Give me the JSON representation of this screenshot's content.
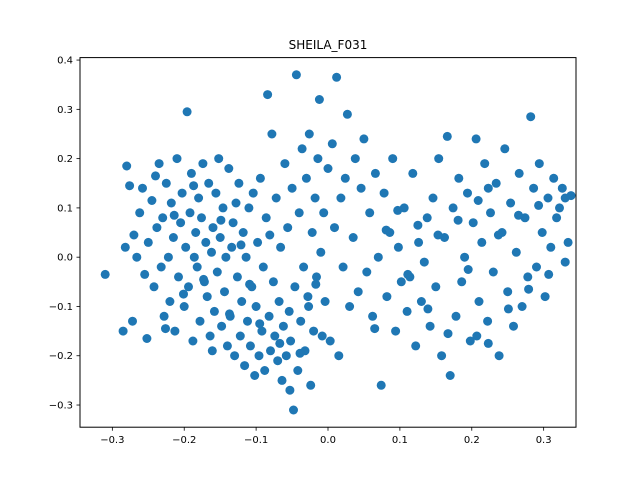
{
  "chart_data": {
    "type": "scatter",
    "title": "SHEILA_F031",
    "xlabel": "",
    "ylabel": "",
    "xlim": [
      -0.345,
      0.345
    ],
    "ylim": [
      -0.345,
      0.405
    ],
    "xticks": [
      -0.3,
      -0.2,
      -0.1,
      0.0,
      0.1,
      0.2,
      0.3
    ],
    "xtick_labels": [
      "−0.3",
      "−0.2",
      "−0.1",
      "0.0",
      "0.1",
      "0.2",
      "0.3"
    ],
    "yticks": [
      -0.3,
      -0.2,
      -0.1,
      0.0,
      0.1,
      0.2,
      0.3,
      0.4
    ],
    "ytick_labels": [
      "−0.3",
      "−0.2",
      "−0.1",
      "0.0",
      "0.1",
      "0.2",
      "0.3",
      "0.4"
    ],
    "grid": false,
    "marker_color": "#1f77b4",
    "points": [
      [
        -0.31,
        -0.035
      ],
      [
        -0.285,
        -0.15
      ],
      [
        -0.28,
        0.185
      ],
      [
        -0.282,
        0.02
      ],
      [
        -0.276,
        0.145
      ],
      [
        -0.266,
        0.0
      ],
      [
        -0.272,
        -0.13
      ],
      [
        -0.262,
        0.09
      ],
      [
        -0.258,
        0.14
      ],
      [
        -0.252,
        -0.165
      ],
      [
        -0.25,
        0.03
      ],
      [
        -0.245,
        0.115
      ],
      [
        -0.242,
        -0.06
      ],
      [
        -0.238,
        0.06
      ],
      [
        -0.235,
        0.19
      ],
      [
        -0.232,
        -0.02
      ],
      [
        -0.23,
        0.08
      ],
      [
        -0.228,
        -0.12
      ],
      [
        -0.225,
        0.15
      ],
      [
        -0.222,
        0.0
      ],
      [
        -0.22,
        -0.09
      ],
      [
        -0.218,
        0.11
      ],
      [
        -0.215,
        0.04
      ],
      [
        -0.213,
        -0.15
      ],
      [
        -0.21,
        0.2
      ],
      [
        -0.208,
        -0.04
      ],
      [
        -0.205,
        0.07
      ],
      [
        -0.203,
        0.13
      ],
      [
        -0.2,
        -0.1
      ],
      [
        -0.198,
        0.02
      ],
      [
        -0.196,
        0.295
      ],
      [
        -0.194,
        -0.06
      ],
      [
        -0.192,
        0.09
      ],
      [
        -0.19,
        0.17
      ],
      [
        -0.188,
        -0.17
      ],
      [
        -0.186,
        0.0
      ],
      [
        -0.184,
        0.05
      ],
      [
        -0.182,
        -0.02
      ],
      [
        -0.18,
        0.12
      ],
      [
        -0.178,
        -0.13
      ],
      [
        -0.176,
        0.08
      ],
      [
        -0.174,
        0.19
      ],
      [
        -0.172,
        -0.05
      ],
      [
        -0.17,
        0.03
      ],
      [
        -0.168,
        -0.08
      ],
      [
        -0.166,
        0.15
      ],
      [
        -0.164,
        -0.16
      ],
      [
        -0.162,
        0.01
      ],
      [
        -0.16,
        0.06
      ],
      [
        -0.158,
        -0.11
      ],
      [
        -0.156,
        0.13
      ],
      [
        -0.154,
        -0.03
      ],
      [
        -0.152,
        0.2
      ],
      [
        -0.15,
        0.04
      ],
      [
        -0.148,
        -0.14
      ],
      [
        -0.146,
        0.1
      ],
      [
        -0.144,
        -0.07
      ],
      [
        -0.142,
        0.0
      ],
      [
        -0.14,
        -0.18
      ],
      [
        -0.138,
        0.18
      ],
      [
        -0.136,
        -0.12
      ],
      [
        -0.134,
        0.02
      ],
      [
        -0.132,
        0.07
      ],
      [
        -0.13,
        -0.2
      ],
      [
        -0.128,
        0.11
      ],
      [
        -0.126,
        -0.04
      ],
      [
        -0.124,
        0.15
      ],
      [
        -0.122,
        -0.16
      ],
      [
        -0.12,
        -0.09
      ],
      [
        -0.118,
        0.05
      ],
      [
        -0.116,
        -0.22
      ],
      [
        -0.114,
        0.0
      ],
      [
        -0.112,
        -0.13
      ],
      [
        -0.11,
        0.1
      ],
      [
        -0.108,
        -0.18
      ],
      [
        -0.106,
        -0.06
      ],
      [
        -0.104,
        0.13
      ],
      [
        -0.102,
        -0.24
      ],
      [
        -0.1,
        -0.1
      ],
      [
        -0.098,
        0.03
      ],
      [
        -0.096,
        -0.2
      ],
      [
        -0.094,
        0.16
      ],
      [
        -0.092,
        -0.15
      ],
      [
        -0.09,
        -0.02
      ],
      [
        -0.088,
        -0.23
      ],
      [
        -0.086,
        0.08
      ],
      [
        -0.084,
        0.33
      ],
      [
        -0.082,
        -0.12
      ],
      [
        -0.08,
        -0.19
      ],
      [
        -0.078,
        0.25
      ],
      [
        -0.076,
        -0.05
      ],
      [
        -0.074,
        -0.16
      ],
      [
        -0.072,
        0.12
      ],
      [
        -0.07,
        -0.21
      ],
      [
        -0.068,
        -0.09
      ],
      [
        -0.066,
        0.02
      ],
      [
        -0.064,
        -0.25
      ],
      [
        -0.062,
        -0.14
      ],
      [
        -0.06,
        0.19
      ],
      [
        -0.058,
        -0.2
      ],
      [
        -0.056,
        0.06
      ],
      [
        -0.054,
        -0.11
      ],
      [
        -0.052,
        -0.17
      ],
      [
        -0.05,
        0.14
      ],
      [
        -0.048,
        -0.31
      ],
      [
        -0.046,
        -0.06
      ],
      [
        -0.044,
        0.37
      ],
      [
        -0.042,
        -0.23
      ],
      [
        -0.04,
        0.09
      ],
      [
        -0.038,
        -0.13
      ],
      [
        -0.036,
        0.22
      ],
      [
        -0.034,
        -0.02
      ],
      [
        -0.032,
        -0.19
      ],
      [
        -0.03,
        0.16
      ],
      [
        -0.028,
        -0.08
      ],
      [
        -0.026,
        0.25
      ],
      [
        -0.024,
        -0.26
      ],
      [
        -0.022,
        0.05
      ],
      [
        -0.02,
        -0.15
      ],
      [
        -0.018,
        0.12
      ],
      [
        -0.016,
        -0.04
      ],
      [
        -0.014,
        0.2
      ],
      [
        -0.012,
        0.32
      ],
      [
        -0.01,
        0.01
      ],
      [
        -0.008,
        -0.16
      ],
      [
        -0.006,
        0.09
      ],
      [
        -0.004,
        -0.09
      ],
      [
        0.0,
        0.18
      ],
      [
        0.003,
        -0.17
      ],
      [
        0.006,
        0.23
      ],
      [
        0.009,
        0.06
      ],
      [
        0.012,
        0.365
      ],
      [
        0.015,
        -0.2
      ],
      [
        0.018,
        0.12
      ],
      [
        0.021,
        -0.02
      ],
      [
        0.024,
        0.16
      ],
      [
        0.027,
        0.29
      ],
      [
        0.03,
        -0.1
      ],
      [
        0.035,
        0.04
      ],
      [
        0.038,
        0.2
      ],
      [
        0.042,
        -0.07
      ],
      [
        0.046,
        0.14
      ],
      [
        0.05,
        0.24
      ],
      [
        0.054,
        -0.03
      ],
      [
        0.058,
        0.09
      ],
      [
        0.062,
        -0.12
      ],
      [
        0.066,
        0.17
      ],
      [
        0.07,
        0.0
      ],
      [
        0.074,
        -0.26
      ],
      [
        0.078,
        0.13
      ],
      [
        0.082,
        -0.08
      ],
      [
        0.086,
        0.05
      ],
      [
        0.09,
        0.2
      ],
      [
        0.094,
        -0.15
      ],
      [
        0.098,
        0.02
      ],
      [
        0.102,
        -0.05
      ],
      [
        0.106,
        0.1
      ],
      [
        0.11,
        -0.11
      ],
      [
        0.114,
        -0.04
      ],
      [
        0.118,
        0.17
      ],
      [
        0.122,
        -0.18
      ],
      [
        0.126,
        0.03
      ],
      [
        0.13,
        -0.09
      ],
      [
        0.134,
        -0.01
      ],
      [
        0.138,
        0.08
      ],
      [
        0.142,
        -0.14
      ],
      [
        0.146,
        0.12
      ],
      [
        0.15,
        -0.06
      ],
      [
        0.154,
        0.2
      ],
      [
        0.158,
        -0.2
      ],
      [
        0.162,
        0.04
      ],
      [
        0.166,
        0.245
      ],
      [
        0.17,
        -0.24
      ],
      [
        0.174,
        0.1
      ],
      [
        0.178,
        -0.12
      ],
      [
        0.182,
        0.16
      ],
      [
        0.186,
        -0.05
      ],
      [
        0.19,
        0.0
      ],
      [
        0.194,
        0.13
      ],
      [
        0.198,
        -0.17
      ],
      [
        0.202,
        0.07
      ],
      [
        0.206,
        0.24
      ],
      [
        0.21,
        -0.09
      ],
      [
        0.214,
        0.03
      ],
      [
        0.218,
        0.19
      ],
      [
        0.222,
        -0.13
      ],
      [
        0.226,
        0.09
      ],
      [
        0.23,
        -0.03
      ],
      [
        0.234,
        0.15
      ],
      [
        0.238,
        -0.2
      ],
      [
        0.242,
        0.05
      ],
      [
        0.246,
        0.22
      ],
      [
        0.25,
        -0.07
      ],
      [
        0.254,
        0.11
      ],
      [
        0.258,
        -0.14
      ],
      [
        0.262,
        0.01
      ],
      [
        0.266,
        0.17
      ],
      [
        0.27,
        -0.1
      ],
      [
        0.274,
        0.08
      ],
      [
        0.278,
        -0.04
      ],
      [
        0.282,
        0.285
      ],
      [
        0.286,
        0.14
      ],
      [
        0.29,
        -0.02
      ],
      [
        0.294,
        0.19
      ],
      [
        0.298,
        0.05
      ],
      [
        0.302,
        -0.08
      ],
      [
        0.306,
        0.12
      ],
      [
        0.31,
        0.02
      ],
      [
        0.314,
        0.16
      ],
      [
        0.318,
        0.08
      ],
      [
        0.322,
        0.1
      ],
      [
        0.326,
        0.14
      ],
      [
        0.33,
        -0.01
      ],
      [
        0.334,
        0.03
      ],
      [
        0.338,
        0.125
      ],
      [
        0.33,
        0.12
      ],
      [
        -0.27,
        0.045
      ],
      [
        -0.255,
        -0.035
      ],
      [
        -0.24,
        0.165
      ],
      [
        -0.226,
        -0.145
      ],
      [
        -0.214,
        0.085
      ],
      [
        -0.201,
        -0.075
      ],
      [
        -0.187,
        0.145
      ],
      [
        -0.173,
        -0.045
      ],
      [
        -0.161,
        -0.19
      ],
      [
        -0.149,
        0.075
      ],
      [
        -0.137,
        -0.115
      ],
      [
        -0.121,
        0.025
      ],
      [
        -0.109,
        -0.055
      ],
      [
        -0.095,
        -0.135
      ],
      [
        -0.081,
        0.045
      ],
      [
        -0.067,
        -0.175
      ],
      [
        -0.053,
        -0.27
      ],
      [
        -0.039,
        -0.195
      ],
      [
        -0.027,
        -0.1
      ],
      [
        -0.017,
        -0.055
      ],
      [
        0.065,
        -0.145
      ],
      [
        0.081,
        0.055
      ],
      [
        0.097,
        0.095
      ],
      [
        0.111,
        -0.035
      ],
      [
        0.125,
        0.065
      ],
      [
        0.139,
        -0.105
      ],
      [
        0.153,
        0.045
      ],
      [
        0.167,
        -0.155
      ],
      [
        0.181,
        0.075
      ],
      [
        0.195,
        -0.025
      ],
      [
        0.209,
        0.115
      ],
      [
        0.223,
        -0.175
      ],
      [
        0.237,
        0.045
      ],
      [
        0.251,
        -0.105
      ],
      [
        0.265,
        0.085
      ],
      [
        0.279,
        -0.065
      ],
      [
        0.293,
        0.105
      ],
      [
        0.307,
        -0.035
      ],
      [
        0.207,
        -0.16
      ],
      [
        0.223,
        0.14
      ]
    ]
  }
}
